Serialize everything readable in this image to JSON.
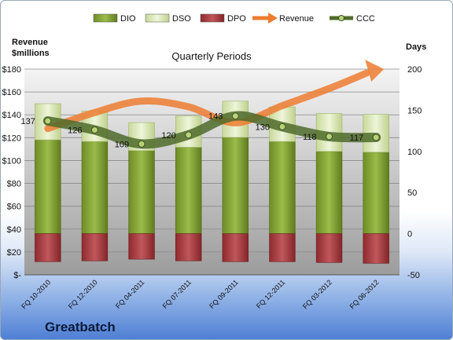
{
  "company": "Greatbatch",
  "chart_data": {
    "type": "bar",
    "title": "Quarterly Periods",
    "left_axis_label": [
      "Revenue",
      "$millions"
    ],
    "right_axis_label": "Days",
    "categories": [
      "FQ 10-2010",
      "FQ 12-2010",
      "FQ 04-2011",
      "FQ 07-2011",
      "FQ 09-2011",
      "FQ 12-2011",
      "FQ 03-2012",
      "FQ 06-2012"
    ],
    "left_ticks": [
      "$180",
      "$160",
      "$140",
      "$120",
      "$100",
      "$80",
      "$60",
      "$40",
      "$20",
      "$-"
    ],
    "right_ticks": [
      "200",
      "150",
      "100",
      "50",
      "0",
      "-50"
    ],
    "left_ylim": [
      0,
      180
    ],
    "right_ylim": [
      -50,
      200
    ],
    "legend_position": "top",
    "series": [
      {
        "name": "DIO",
        "axis": "days",
        "values": [
          114,
          112,
          101,
          105,
          117,
          112,
          100,
          99
        ],
        "color": "#7a9a2e"
      },
      {
        "name": "DSO",
        "axis": "days",
        "values": [
          44,
          37,
          34,
          38,
          44,
          42,
          46,
          46
        ],
        "color": "#dbe8b5"
      },
      {
        "name": "DPO",
        "axis": "days",
        "values": [
          -34,
          -33,
          -31,
          -33,
          -34,
          -34,
          -35,
          -36
        ],
        "color": "#a6353a"
      },
      {
        "name": "Revenue",
        "axis": "revenue",
        "values": [
          128,
          142,
          152,
          147,
          133,
          148,
          163,
          180
        ],
        "color": "#ed7d31"
      },
      {
        "name": "CCC",
        "axis": "days",
        "values": [
          137,
          126,
          109,
          120,
          143,
          130,
          118,
          117
        ],
        "color": "#5c7a32"
      }
    ],
    "ccc_labels": [
      "137",
      "126",
      "109",
      "120",
      "143",
      "130",
      "118",
      "117"
    ]
  }
}
